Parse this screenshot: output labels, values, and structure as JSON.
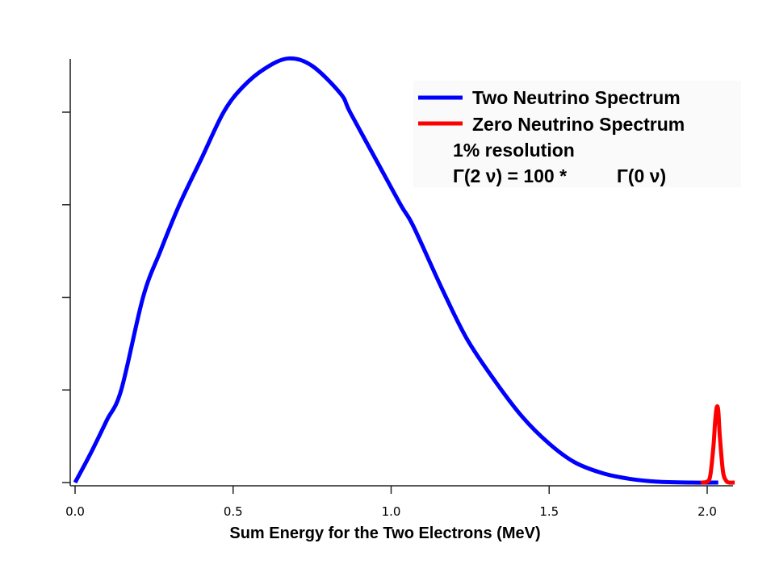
{
  "chart_data": {
    "type": "line",
    "title": "",
    "xlabel": "Sum Energy for the Two Electrons (MeV)",
    "ylabel": "",
    "xlim": [
      0.0,
      2.1
    ],
    "ylim": [
      0,
      4.6
    ],
    "x_ticks": [
      0.0,
      0.5,
      1.0,
      1.5,
      2.0
    ],
    "x_tick_labels": [
      "0.0",
      "0.5",
      "1.0",
      "1.5",
      "2.0"
    ],
    "y_ticks": [
      0,
      1,
      2,
      3,
      4
    ],
    "y_tick_labels": [
      "",
      "",
      "",
      "",
      ""
    ],
    "grid": false,
    "legend_position": "top-right",
    "series": [
      {
        "name": "Two Neutrino Spectrum",
        "color": "#0000ff",
        "x": [
          0.0,
          0.05,
          0.1,
          0.146,
          0.215,
          0.27,
          0.33,
          0.4,
          0.47,
          0.53,
          0.6,
          0.675,
          0.75,
          0.84,
          0.87,
          0.95,
          1.03,
          1.07,
          1.16,
          1.24,
          1.33,
          1.415,
          1.5,
          1.58,
          1.67,
          1.755,
          1.84,
          1.95,
          2.035
        ],
        "y": [
          0.0,
          0.32,
          0.67,
          1.0,
          2.0,
          2.5,
          3.0,
          3.5,
          4.0,
          4.27,
          4.47,
          4.58,
          4.5,
          4.2,
          4.0,
          3.5,
          3.0,
          2.77,
          2.1,
          1.55,
          1.09,
          0.71,
          0.42,
          0.22,
          0.1,
          0.04,
          0.01,
          0.0,
          0.0
        ]
      },
      {
        "name": "Zero Neutrino Spectrum",
        "color": "#ff0000",
        "x": [
          1.98,
          2.0,
          2.01,
          2.02,
          2.025,
          2.03,
          2.035,
          2.04,
          2.05,
          2.06,
          2.07,
          2.087
        ],
        "y": [
          0.0,
          0.01,
          0.08,
          0.4,
          0.65,
          0.81,
          0.78,
          0.5,
          0.12,
          0.02,
          0.0,
          0.0
        ]
      }
    ],
    "annotations": [
      "1% resolution",
      "Γ(2 ν) = 100 *",
      "Γ(0 ν)"
    ]
  },
  "legend": {
    "items": [
      {
        "label": "Two Neutrino Spectrum",
        "color": "#0000ff"
      },
      {
        "label": "Zero Neutrino Spectrum",
        "color": "#ff0000"
      }
    ],
    "note_resolution": "1% resolution",
    "note_ratio_left": "Γ(2 ν) = 100 *",
    "note_ratio_right": "Γ(0 ν)"
  }
}
